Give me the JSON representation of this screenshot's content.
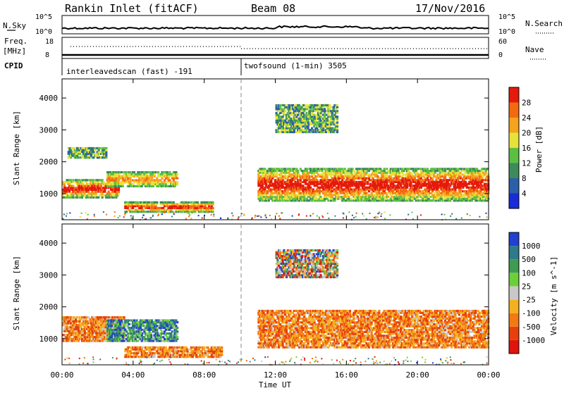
{
  "header": {
    "station": "Rankin Inlet (fitACF)",
    "beam": "Beam 08",
    "date": "17/Nov/2016"
  },
  "status_panels": {
    "nsky_label": "N.Sky",
    "nsearch_label": "N.Search",
    "nsky_ticks": [
      "10^5",
      "10^0"
    ],
    "nsearch_ticks": [
      "10^5",
      "10^0"
    ],
    "freq_label_1": "Freq.",
    "freq_label_2": "[MHz]",
    "freq_ticks": [
      "18",
      "8"
    ],
    "nave_label": "Nave",
    "nave_ticks": [
      "60",
      "0"
    ],
    "cpid_label": "CPID",
    "cpid_modes": [
      {
        "name": "interleavedscan (fast) -191",
        "start_hour": 0
      },
      {
        "name": "twofsound (1-min) 3505",
        "start_hour": 10
      }
    ]
  },
  "time_axis": {
    "xlabel": "Time UT",
    "ticks": [
      "00:00",
      "04:00",
      "08:00",
      "12:00",
      "16:00",
      "20:00",
      "00:00"
    ],
    "hours": [
      0,
      4,
      8,
      12,
      16,
      20,
      24
    ]
  },
  "chart_data": [
    {
      "type": "heatmap",
      "title": "Power",
      "ylabel": "Slant Range [km]",
      "yticks": [
        1000,
        2000,
        3000,
        4000
      ],
      "ylim": [
        180,
        4600
      ],
      "xlim_hours": [
        0,
        24
      ],
      "colorbar_label": "Power [dB]",
      "colorbar_ticks": [
        "4",
        "8",
        "12",
        "16",
        "20",
        "24",
        "28"
      ],
      "colorbar_colors": [
        "#1a2bd8",
        "#2b5fa8",
        "#3e8a5a",
        "#5cbf42",
        "#e6e23a",
        "#f5a21e",
        "#f26a10",
        "#e51a0c"
      ],
      "regions": [
        {
          "hours": [
            0,
            3.2
          ],
          "range": [
            850,
            1450
          ],
          "class": "high"
        },
        {
          "hours": [
            2.5,
            6.5
          ],
          "range": [
            1200,
            1700
          ],
          "class": "mid"
        },
        {
          "hours": [
            3.5,
            8.5
          ],
          "range": [
            400,
            750
          ],
          "class": "high"
        },
        {
          "hours": [
            0.3,
            2.5
          ],
          "range": [
            2100,
            2450
          ],
          "class": "low"
        },
        {
          "hours": [
            11,
            24
          ],
          "range": [
            750,
            1800
          ],
          "class": "high"
        },
        {
          "hours": [
            12,
            15.5
          ],
          "range": [
            2900,
            3800
          ],
          "class": "low"
        }
      ]
    },
    {
      "type": "heatmap",
      "title": "Velocity",
      "ylabel": "Slant Range [km]",
      "yticks": [
        1000,
        2000,
        3000,
        4000
      ],
      "ylim": [
        180,
        4600
      ],
      "xlim_hours": [
        0,
        24
      ],
      "colorbar_label": "Velocity [m s^-1]",
      "colorbar_ticks": [
        "1000",
        "500",
        "100",
        "25",
        "-25",
        "-100",
        "-500",
        "-1000"
      ],
      "colorbar_colors": [
        "#2140d0",
        "#2f7a8a",
        "#3f9a52",
        "#6ccf3a",
        "#c8c8c8",
        "#f5b020",
        "#f27a12",
        "#e8400c",
        "#e0140c"
      ],
      "regions": [
        {
          "hours": [
            0,
            3.5
          ],
          "range": [
            900,
            1700
          ],
          "class": "neg"
        },
        {
          "hours": [
            2.5,
            6.5
          ],
          "range": [
            900,
            1600
          ],
          "class": "pos"
        },
        {
          "hours": [
            3.5,
            9
          ],
          "range": [
            400,
            750
          ],
          "class": "neg"
        },
        {
          "hours": [
            11,
            24
          ],
          "range": [
            700,
            1900
          ],
          "class": "neg"
        },
        {
          "hours": [
            12,
            15.5
          ],
          "range": [
            2900,
            3800
          ],
          "class": "mix"
        }
      ]
    }
  ],
  "colors": {
    "divider": "#888888"
  }
}
